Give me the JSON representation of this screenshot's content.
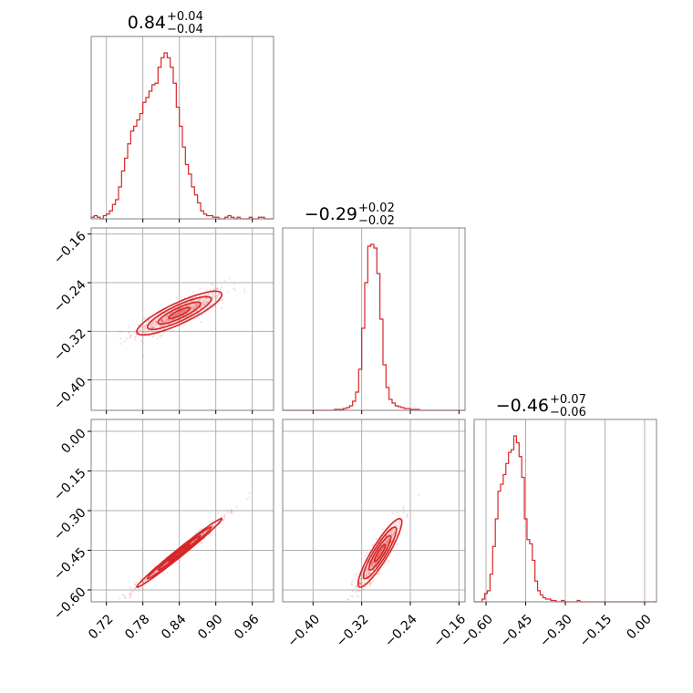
{
  "chart_data": {
    "type": "corner",
    "color": "#d62728",
    "parameters": [
      {
        "ticks": [
          0.72,
          0.78,
          0.84,
          0.9,
          0.96
        ],
        "tick_labels": [
          "0.72",
          "0.78",
          "0.84",
          "0.90",
          "0.96"
        ],
        "range": [
          0.695,
          0.995
        ]
      },
      {
        "ticks": [
          -0.4,
          -0.32,
          -0.24,
          -0.16
        ],
        "tick_labels": [
          "−0.40",
          "−0.32",
          "−0.24",
          "−0.16"
        ],
        "range": [
          -0.45,
          -0.15
        ]
      },
      {
        "ticks": [
          -0.6,
          -0.45,
          -0.3,
          -0.15,
          0.0
        ],
        "tick_labels": [
          "−0.60",
          "−0.45",
          "−0.30",
          "−0.15",
          "0.00"
        ],
        "range": [
          -0.645,
          0.045
        ]
      }
    ],
    "titles": [
      {
        "median": "0.84",
        "plus": "+0.04",
        "minus": "−0.04"
      },
      {
        "median": "−0.29",
        "plus": "+0.02",
        "minus": "−0.02"
      },
      {
        "median": "−0.46",
        "plus": "+0.07",
        "minus": "−0.06"
      }
    ],
    "histograms": [
      {
        "bin_start": 0.695,
        "bin_width": 0.005,
        "counts": [
          1,
          2,
          1,
          0,
          2,
          3,
          5,
          9,
          12,
          20,
          30,
          38,
          47,
          55,
          58,
          62,
          66,
          73,
          76,
          80,
          84,
          85,
          95,
          101,
          104,
          101,
          95,
          85,
          70,
          58,
          45,
          34,
          28,
          20,
          15,
          10,
          5,
          3,
          2,
          2,
          1,
          1,
          0,
          0,
          1,
          2,
          1,
          0,
          1,
          0,
          0,
          0,
          1,
          0,
          0,
          1,
          1,
          0,
          0,
          0
        ]
      },
      {
        "bin_start": -0.45,
        "bin_width": 0.005,
        "counts": [
          0,
          0,
          0,
          0,
          0,
          0,
          0,
          0,
          0,
          0,
          0,
          0,
          0,
          0,
          0,
          0,
          0,
          1,
          1,
          1,
          2,
          3,
          5,
          10,
          20,
          45,
          90,
          140,
          180,
          182,
          178,
          150,
          100,
          50,
          25,
          12,
          8,
          5,
          4,
          3,
          2,
          2,
          1,
          1,
          1,
          0,
          0,
          0,
          0,
          0,
          0,
          0,
          0,
          0,
          0,
          0,
          0,
          0,
          0,
          0
        ]
      },
      {
        "bin_start": -0.645,
        "bin_width": 0.01,
        "counts": [
          0,
          0,
          0,
          2,
          6,
          8,
          20,
          40,
          60,
          80,
          85,
          92,
          100,
          108,
          110,
          120,
          115,
          105,
          90,
          60,
          45,
          42,
          30,
          15,
          8,
          5,
          3,
          2,
          2,
          1,
          1,
          0,
          0,
          1,
          0,
          0,
          0,
          0,
          0,
          1,
          0,
          0,
          0,
          0,
          0,
          0,
          0,
          0,
          0,
          0,
          0,
          0,
          0,
          0,
          0,
          0,
          0,
          0,
          0,
          0,
          0,
          0,
          0,
          0,
          0,
          0,
          0,
          0,
          0,
          0
        ]
      }
    ],
    "correlations": {
      "x0x1": 0.85,
      "x0x2": 0.99,
      "x1x2": 0.9
    },
    "centers": [
      0.84,
      -0.29,
      -0.46
    ],
    "spreads": [
      0.035,
      0.018,
      0.065
    ]
  }
}
